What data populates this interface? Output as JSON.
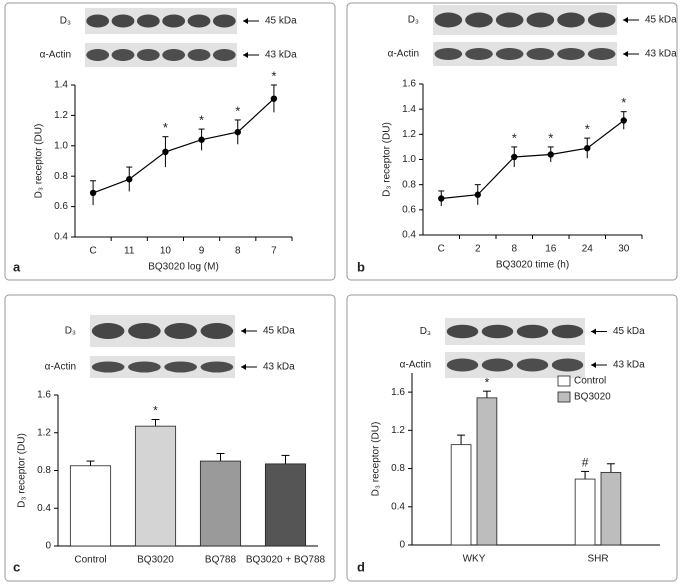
{
  "chart_data": [
    {
      "type": "line",
      "panel_label": "a",
      "blot": {
        "target_label": "D₃",
        "target_size": "45 kDa",
        "control_label": "α-Actin",
        "control_size": "43 kDa"
      },
      "ylabel": "D₃ receptor (DU)",
      "xlabel": "BQ3020 log (M)",
      "categories": [
        "C",
        "11",
        "10",
        "9",
        "8",
        "7"
      ],
      "values": [
        0.69,
        0.78,
        0.96,
        1.04,
        1.09,
        1.31
      ],
      "errors": [
        0.08,
        0.08,
        0.1,
        0.07,
        0.08,
        0.09
      ],
      "significance": [
        null,
        null,
        "*",
        "*",
        "*",
        "*"
      ],
      "color": "#000000",
      "ylim": [
        0.4,
        1.4
      ],
      "yticks": [
        0.4,
        0.6,
        0.8,
        {
          "value": 1.0,
          "label": "1.0"
        },
        1.2,
        1.4
      ]
    },
    {
      "type": "line",
      "panel_label": "b",
      "blot": {
        "target_label": "D₃",
        "target_size": "45 kDa",
        "control_label": "α-Actin",
        "control_size": "43 kDa"
      },
      "ylabel": "D₃ receptor (DU)",
      "xlabel": "BQ3020 time (h)",
      "categories": [
        "C",
        "2",
        "8",
        "16",
        "24",
        "30"
      ],
      "values": [
        0.69,
        0.72,
        1.02,
        1.04,
        1.09,
        1.31
      ],
      "errors": [
        0.06,
        0.08,
        0.08,
        0.06,
        0.08,
        0.07
      ],
      "significance": [
        null,
        null,
        "*",
        "*",
        "*",
        "*"
      ],
      "color": "#000000",
      "ylim": [
        0.4,
        1.6
      ],
      "yticks": [
        0.4,
        0.6,
        0.8,
        {
          "value": 1.0,
          "label": "1.0"
        },
        1.2,
        1.4,
        1.6
      ]
    },
    {
      "type": "bar",
      "panel_label": "c",
      "blot": {
        "target_label": "D₃",
        "target_size": "45 kDa",
        "control_label": "α-Actin",
        "control_size": "43 kDa"
      },
      "ylabel": "D₃ receptor (DU)",
      "categories": [
        "Control",
        "BQ3020",
        "BQ788",
        "BQ3020 + BQ788"
      ],
      "values": [
        0.85,
        1.27,
        0.9,
        0.87
      ],
      "errors": [
        0.05,
        0.07,
        0.08,
        0.09
      ],
      "significance": [
        null,
        "*",
        null,
        null
      ],
      "colors": [
        "#ffffff",
        "#d4d4d4",
        "#9a9a9a",
        "#555555"
      ],
      "ylim": [
        0,
        1.6
      ],
      "yticks": [
        0,
        0.4,
        0.8,
        1.2,
        1.6
      ]
    },
    {
      "type": "bar",
      "panel_label": "d",
      "blot": {
        "target_label": "D₃",
        "target_size": "45 kDa",
        "control_label": "α-Actin",
        "control_size": "43 kDa"
      },
      "ylabel": "D₃ receptor (DU)",
      "categories": [
        "WKY",
        "SHR"
      ],
      "series": [
        {
          "name": "Control",
          "color": "#ffffff",
          "values": [
            1.05,
            0.69
          ],
          "errors": [
            0.1,
            0.08
          ],
          "significance": [
            null,
            "#"
          ]
        },
        {
          "name": "BQ3020",
          "color": "#bdbdbd",
          "values": [
            1.54,
            0.76
          ],
          "errors": [
            0.07,
            0.09
          ],
          "significance": [
            "*",
            null
          ]
        }
      ],
      "legend": "upper right",
      "ylim": [
        0,
        1.8
      ],
      "yticks": [
        0,
        0.4,
        0.8,
        1.2,
        1.6
      ]
    }
  ]
}
